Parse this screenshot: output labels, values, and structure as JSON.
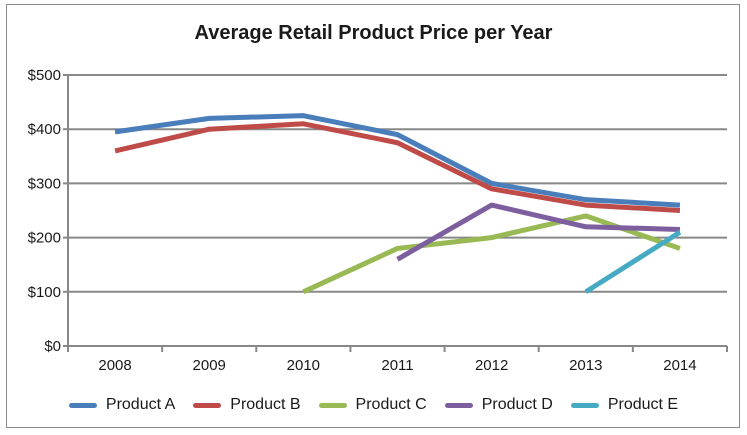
{
  "chart_data": {
    "type": "line",
    "title": "Average Retail Product Price per Year",
    "xlabel": "",
    "ylabel": "",
    "categories": [
      "2008",
      "2009",
      "2010",
      "2011",
      "2012",
      "2013",
      "2014"
    ],
    "ylim": [
      0,
      500
    ],
    "yticks": [
      0,
      100,
      200,
      300,
      400,
      500
    ],
    "ytick_labels": [
      "$0",
      "$100",
      "$200",
      "$300",
      "$400",
      "$500"
    ],
    "grid": true,
    "legend_position": "bottom",
    "series": [
      {
        "name": "Product A",
        "color": "#4a7ebb",
        "values": [
          395,
          420,
          425,
          390,
          300,
          270,
          260
        ]
      },
      {
        "name": "Product B",
        "color": "#be4b48",
        "values": [
          360,
          400,
          410,
          375,
          290,
          260,
          250
        ]
      },
      {
        "name": "Product C",
        "color": "#98b954",
        "values": [
          null,
          null,
          100,
          180,
          200,
          240,
          180
        ]
      },
      {
        "name": "Product D",
        "color": "#7d5fa0",
        "values": [
          null,
          null,
          null,
          160,
          260,
          220,
          215
        ]
      },
      {
        "name": "Product E",
        "color": "#46aac5",
        "values": [
          null,
          null,
          null,
          null,
          null,
          100,
          210
        ]
      }
    ]
  }
}
